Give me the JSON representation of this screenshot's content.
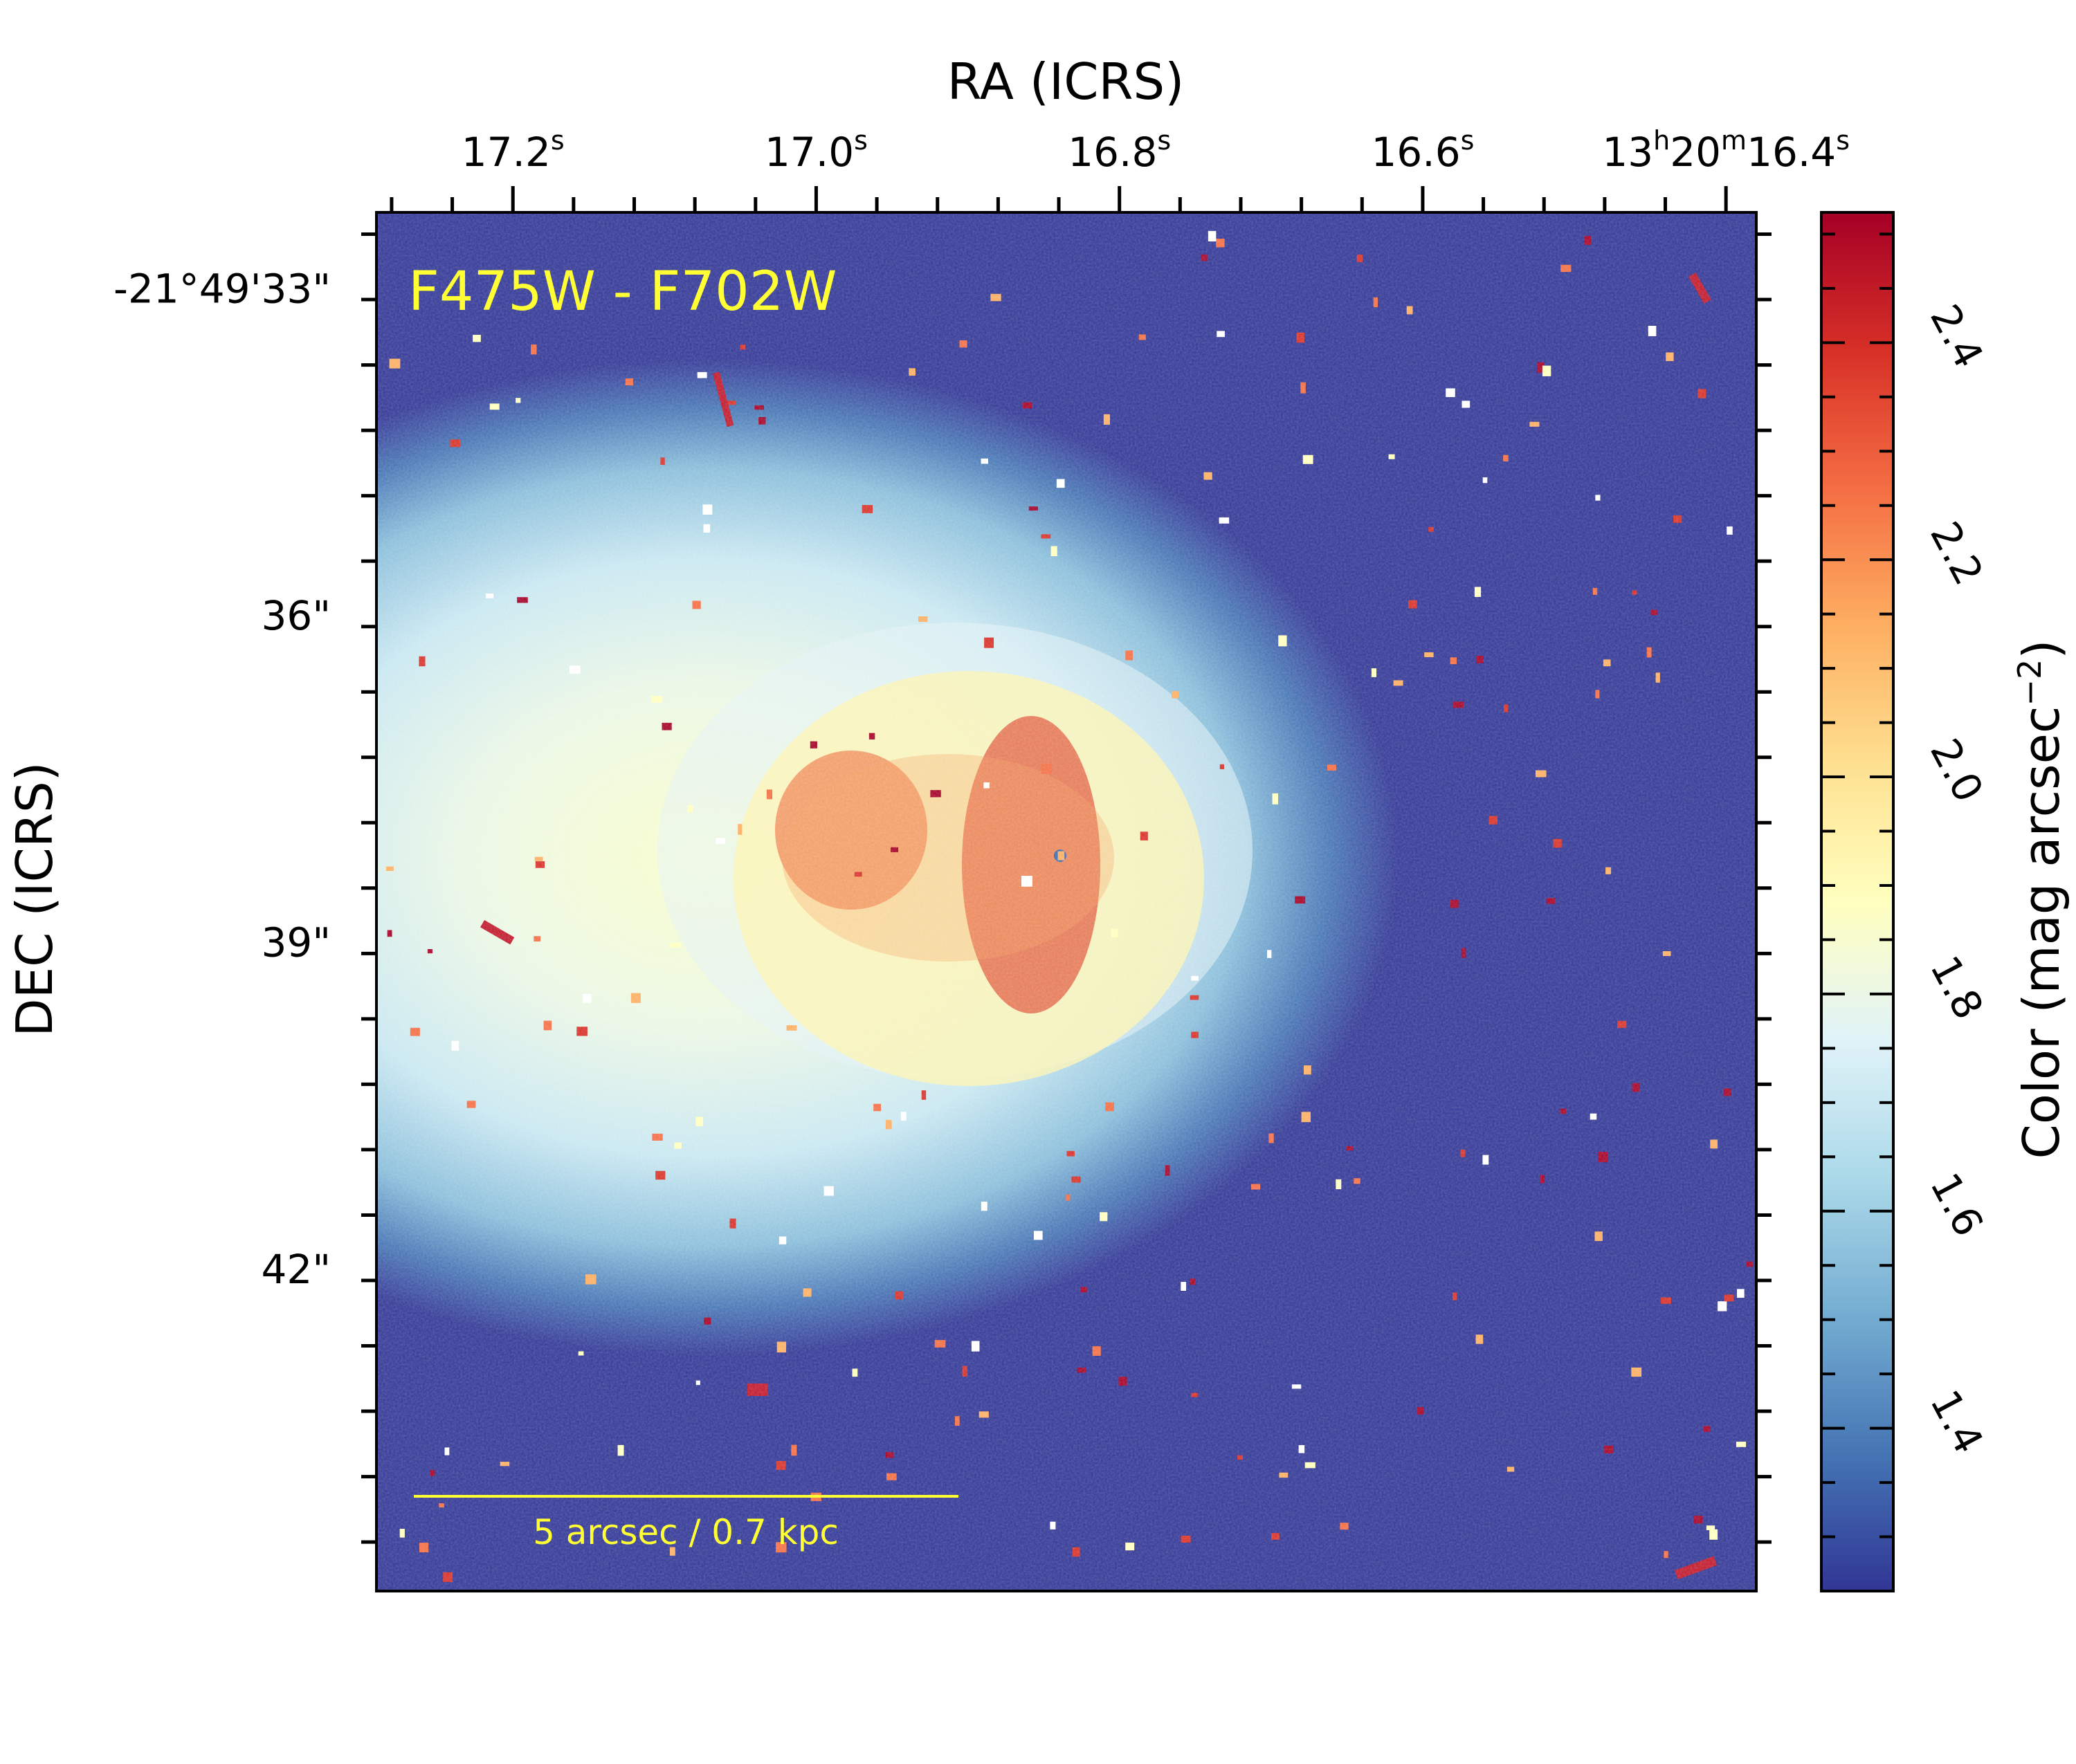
{
  "chart_data": {
    "type": "heatmap",
    "xlabel": "RA (ICRS)",
    "ylabel": "DEC (ICRS)",
    "x_ticks": [
      {
        "value": 17.2,
        "label": "17.2",
        "sup": "s"
      },
      {
        "value": 17.0,
        "label": "17.0",
        "sup": "s"
      },
      {
        "value": 16.8,
        "label": "16.8",
        "sup": "s"
      },
      {
        "value": 16.6,
        "label": "16.6",
        "sup": "s"
      },
      {
        "value": 16.4,
        "parts": [
          {
            "t": "13",
            "sup": false
          },
          {
            "t": "h",
            "sup": true
          },
          {
            "t": "20",
            "sup": false
          },
          {
            "t": "m",
            "sup": true
          },
          {
            "t": "16.4",
            "sup": false
          },
          {
            "t": "s",
            "sup": true
          }
        ]
      }
    ],
    "y_ticks": [
      {
        "value": 33,
        "label": "-21°49'33\""
      },
      {
        "value": 36,
        "label": "36\""
      },
      {
        "value": 39,
        "label": "39\""
      },
      {
        "value": 42,
        "label": "42\""
      }
    ],
    "x_range": [
      17.29,
      16.38
    ],
    "y_range": [
      32.3,
      44.95
    ],
    "colorbar": {
      "label": "Color (mag arcsec",
      "label_sup": "−2",
      "label_end": ")",
      "range": [
        1.25,
        2.52
      ],
      "ticks": [
        1.4,
        1.6,
        1.8,
        2.0,
        2.2,
        2.4
      ],
      "tick_labels": [
        "1.4",
        "1.6",
        "1.8",
        "2.0",
        "2.2",
        "2.4"
      ],
      "colormap": "RdYlBu_r"
    },
    "annotations": {
      "filter_label": "F475W - F702W",
      "scale_bar_label": "5 arcsec / 0.7 kpc"
    },
    "colors": {
      "annotation": "#ffff33",
      "background_level": "#313695",
      "core_level": "#e0573a"
    }
  }
}
